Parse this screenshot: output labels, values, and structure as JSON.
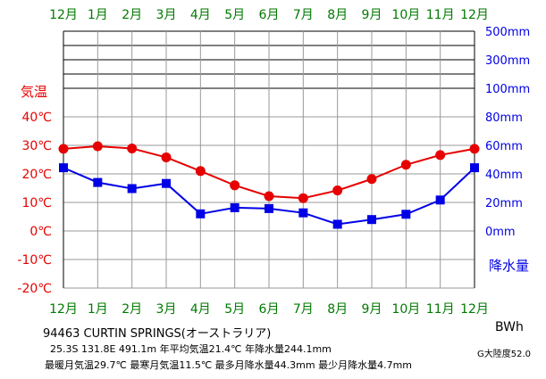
{
  "chart_data": {
    "type": "line",
    "months": [
      "12月",
      "1月",
      "2月",
      "3月",
      "4月",
      "5月",
      "6月",
      "7月",
      "8月",
      "9月",
      "10月",
      "11月",
      "12月"
    ],
    "temp_axis": {
      "label": "気温",
      "ticks": [
        "40℃",
        "30℃",
        "20℃",
        "10℃",
        "0℃",
        "-10℃",
        "-20℃"
      ],
      "tick_values": [
        40,
        30,
        20,
        10,
        0,
        -10,
        -20
      ],
      "range": [
        -20,
        50
      ]
    },
    "precip_axis": {
      "label": "降水量",
      "ticks": [
        "500mm",
        "300mm",
        "100mm",
        "80mm",
        "60mm",
        "40mm",
        "20mm",
        "0mm"
      ]
    },
    "series": [
      {
        "name": "気温",
        "color": "#e60000",
        "marker": "circle",
        "values": [
          28.8,
          29.7,
          28.9,
          25.8,
          21.0,
          16.0,
          12.2,
          11.5,
          14.2,
          18.2,
          23.2,
          26.6,
          28.8
        ]
      },
      {
        "name": "降水量",
        "color": "#0000e6",
        "marker": "square",
        "values": [
          44.3,
          34.0,
          29.7,
          33.3,
          12.0,
          16.3,
          15.7,
          12.7,
          4.7,
          8.0,
          11.7,
          21.7,
          44.3
        ]
      }
    ],
    "grid": true
  },
  "colors": {
    "temp": "#e60000",
    "precip": "#0000e6",
    "month": "#007a00",
    "grid": "#000000"
  },
  "footer": {
    "station": "94463 CURTIN SPRINGS(オーストラリア)",
    "line1": "25.3S 131.8E 491.1m 年平均気温21.4℃ 年降水量244.1mm",
    "line2": "最暖月気温29.7℃ 最寒月気温11.5℃ 最多月降水量44.3mm 最少月降水量4.7mm",
    "climate_code": "BWh",
    "continent": "G大陸度52.0"
  }
}
